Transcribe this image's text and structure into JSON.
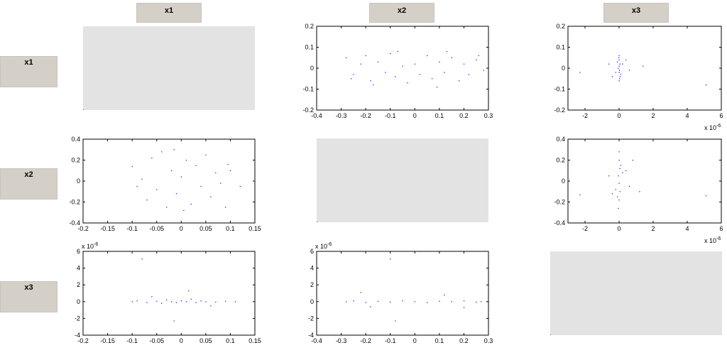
{
  "headers": {
    "columns": [
      "x1",
      "x2",
      "x3"
    ],
    "rows": [
      "x1",
      "x2",
      "x3"
    ]
  },
  "colors": {
    "marker": "#0000ff",
    "empty_panel": "#e3e3e3",
    "header_bg": "#d4d0c8"
  },
  "chart_data": [
    {
      "id": "x2_vs_x1",
      "row": "x1",
      "col": "x2",
      "type": "scatter",
      "xlim": [
        -0.4,
        0.3
      ],
      "ylim": [
        -0.2,
        0.2
      ],
      "xticks": [
        "-0.4",
        "-0.3",
        "-0.2",
        "-0.1",
        "0",
        "0.1",
        "0.2",
        "0.3"
      ],
      "yticks": [
        "0.2",
        "0.1",
        "0",
        "-0.1",
        "-0.2"
      ],
      "x_exponent": "",
      "y_exponent": "",
      "points": [
        [
          -0.28,
          0.05
        ],
        [
          -0.25,
          -0.03
        ],
        [
          -0.22,
          0.02
        ],
        [
          -0.2,
          0.06
        ],
        [
          -0.18,
          -0.06
        ],
        [
          -0.15,
          0.03
        ],
        [
          -0.12,
          -0.02
        ],
        [
          -0.1,
          0.07
        ],
        [
          -0.08,
          -0.04
        ],
        [
          -0.05,
          0.01
        ],
        [
          -0.03,
          -0.07
        ],
        [
          0,
          0.02
        ],
        [
          0.02,
          -0.03
        ],
        [
          0.05,
          0.06
        ],
        [
          0.07,
          -0.05
        ],
        [
          0.1,
          0.03
        ],
        [
          0.12,
          -0.02
        ],
        [
          0.15,
          0.05
        ],
        [
          0.18,
          -0.06
        ],
        [
          0.2,
          0.02
        ],
        [
          0.22,
          -0.03
        ],
        [
          0.25,
          0.04
        ],
        [
          0.28,
          -0.01
        ],
        [
          -0.26,
          -0.05
        ],
        [
          0.26,
          0.06
        ],
        [
          0.09,
          -0.09
        ],
        [
          -0.07,
          0.08
        ],
        [
          0.13,
          0.08
        ],
        [
          -0.17,
          -0.08
        ]
      ]
    },
    {
      "id": "x3_vs_x1",
      "row": "x1",
      "col": "x3",
      "type": "scatter",
      "xlim": [
        -3,
        6
      ],
      "ylim": [
        -0.2,
        0.2
      ],
      "xticks": [
        "-2",
        "0",
        "2",
        "4",
        "6"
      ],
      "yticks": [
        "0.2",
        "0.1",
        "0",
        "-0.1",
        "-0.2"
      ],
      "x_exponent": "x 10-6",
      "y_exponent": "",
      "points": [
        [
          0,
          0.06
        ],
        [
          0,
          0.04
        ],
        [
          0.05,
          0.02
        ],
        [
          -0.05,
          0
        ],
        [
          0,
          -0.02
        ],
        [
          0.05,
          -0.04
        ],
        [
          0,
          -0.06
        ],
        [
          -0.1,
          0.03
        ],
        [
          0.1,
          -0.03
        ],
        [
          0,
          0.01
        ],
        [
          0.02,
          -0.01
        ],
        [
          -0.02,
          0.05
        ],
        [
          0.03,
          -0.05
        ],
        [
          0.2,
          0.02
        ],
        [
          -0.2,
          -0.02
        ],
        [
          0.4,
          0.04
        ],
        [
          -0.4,
          -0.04
        ],
        [
          1.4,
          0.01
        ],
        [
          -2.3,
          -0.02
        ],
        [
          5.1,
          -0.08
        ],
        [
          0.6,
          -0.01
        ],
        [
          -0.6,
          0.02
        ]
      ]
    },
    {
      "id": "x1_vs_x2",
      "row": "x2",
      "col": "x1",
      "type": "scatter",
      "xlim": [
        -0.2,
        0.15
      ],
      "ylim": [
        -0.4,
        0.4
      ],
      "xticks": [
        "-0.2",
        "-0.15",
        "-0.1",
        "-0.05",
        "0",
        "0.05",
        "0.1",
        "0.15"
      ],
      "yticks": [
        "0.4",
        "0.2",
        "0",
        "-0.2",
        "-0.4"
      ],
      "x_exponent": "",
      "y_exponent": "",
      "points": [
        [
          -0.1,
          0.14
        ],
        [
          -0.08,
          0.02
        ],
        [
          -0.07,
          -0.18
        ],
        [
          -0.06,
          0.22
        ],
        [
          -0.05,
          -0.08
        ],
        [
          -0.04,
          0.28
        ],
        [
          -0.03,
          -0.25
        ],
        [
          -0.02,
          0.1
        ],
        [
          -0.01,
          -0.12
        ],
        [
          0,
          0.04
        ],
        [
          0.01,
          0.2
        ],
        [
          0.02,
          -0.22
        ],
        [
          0.03,
          0.15
        ],
        [
          0.04,
          -0.05
        ],
        [
          0.05,
          0.25
        ],
        [
          0.06,
          -0.15
        ],
        [
          0.07,
          0.08
        ],
        [
          0.08,
          -0.02
        ],
        [
          0.09,
          -0.25
        ],
        [
          0.1,
          0.1
        ],
        [
          0.12,
          -0.05
        ],
        [
          0.095,
          0.16
        ],
        [
          -0.09,
          -0.05
        ],
        [
          0.005,
          -0.28
        ],
        [
          -0.015,
          0.3
        ]
      ]
    },
    {
      "id": "x3_vs_x2",
      "row": "x2",
      "col": "x3",
      "type": "scatter",
      "xlim": [
        -3,
        6
      ],
      "ylim": [
        -0.4,
        0.4
      ],
      "xticks": [
        "-2",
        "0",
        "2",
        "4",
        "6"
      ],
      "yticks": [
        "0.4",
        "0.2",
        "0",
        "-0.2",
        "-0.4"
      ],
      "x_exponent": "x 10-6",
      "y_exponent": "",
      "points": [
        [
          0,
          0.28
        ],
        [
          0,
          0.2
        ],
        [
          0.05,
          0.12
        ],
        [
          -0.05,
          0.05
        ],
        [
          0,
          -0.02
        ],
        [
          0.05,
          -0.1
        ],
        [
          0,
          -0.18
        ],
        [
          -0.05,
          -0.26
        ],
        [
          0.1,
          0.15
        ],
        [
          -0.1,
          -0.15
        ],
        [
          0.2,
          0.08
        ],
        [
          -0.2,
          -0.08
        ],
        [
          0.4,
          0.1
        ],
        [
          -0.4,
          -0.12
        ],
        [
          0.6,
          -0.05
        ],
        [
          -0.6,
          0.05
        ],
        [
          1.2,
          -0.1
        ],
        [
          -2.3,
          -0.13
        ],
        [
          5.1,
          -0.14
        ],
        [
          0.8,
          0.2
        ]
      ]
    },
    {
      "id": "x1_vs_x3",
      "row": "x3",
      "col": "x1",
      "type": "scatter",
      "xlim": [
        -0.2,
        0.15
      ],
      "ylim": [
        -4,
        6
      ],
      "xticks": [
        "-0.2",
        "-0.15",
        "-0.1",
        "-0.05",
        "0",
        "0.05",
        "0.1",
        "0.15"
      ],
      "yticks": [
        "6",
        "4",
        "2",
        "0",
        "-2",
        "-4"
      ],
      "x_exponent": "",
      "y_exponent": "x 10-6",
      "points": [
        [
          -0.1,
          0
        ],
        [
          -0.09,
          0.1
        ],
        [
          -0.07,
          -0.1
        ],
        [
          -0.05,
          0.05
        ],
        [
          -0.04,
          -0.2
        ],
        [
          -0.03,
          0.2
        ],
        [
          -0.02,
          0
        ],
        [
          -0.01,
          -0.1
        ],
        [
          0,
          0.1
        ],
        [
          0.01,
          0
        ],
        [
          0.02,
          0.3
        ],
        [
          0.03,
          -0.1
        ],
        [
          0.04,
          0.1
        ],
        [
          0.05,
          0
        ],
        [
          0.07,
          -0.05
        ],
        [
          0.09,
          0.05
        ],
        [
          0.11,
          0
        ],
        [
          -0.08,
          5.1
        ],
        [
          -0.015,
          -2.3
        ],
        [
          0.015,
          1.3
        ],
        [
          -0.06,
          0.6
        ],
        [
          0.06,
          -0.5
        ]
      ]
    },
    {
      "id": "x2_vs_x3",
      "row": "x3",
      "col": "x2",
      "type": "scatter",
      "xlim": [
        -0.4,
        0.3
      ],
      "ylim": [
        -4,
        6
      ],
      "xticks": [
        "-0.4",
        "-0.3",
        "-0.2",
        "-0.1",
        "0",
        "0.1",
        "0.2",
        "0.3"
      ],
      "yticks": [
        "6",
        "4",
        "2",
        "0",
        "-2",
        "-4"
      ],
      "x_exponent": "",
      "y_exponent": "x 10-6",
      "points": [
        [
          -0.28,
          0
        ],
        [
          -0.25,
          0.1
        ],
        [
          -0.2,
          -0.1
        ],
        [
          -0.15,
          0.05
        ],
        [
          -0.1,
          -0.05
        ],
        [
          -0.05,
          0.1
        ],
        [
          0,
          0
        ],
        [
          0.05,
          -0.1
        ],
        [
          0.1,
          0.05
        ],
        [
          0.15,
          0
        ],
        [
          0.2,
          0.1
        ],
        [
          0.25,
          -0.05
        ],
        [
          0.27,
          0
        ],
        [
          -0.1,
          5.1
        ],
        [
          -0.08,
          -2.3
        ],
        [
          -0.22,
          1.1
        ],
        [
          0.12,
          0.8
        ],
        [
          -0.18,
          -0.6
        ],
        [
          0.2,
          -0.7
        ]
      ]
    }
  ],
  "empty_panels": [
    "x1_x1",
    "x2_x2",
    "x3_x3"
  ]
}
